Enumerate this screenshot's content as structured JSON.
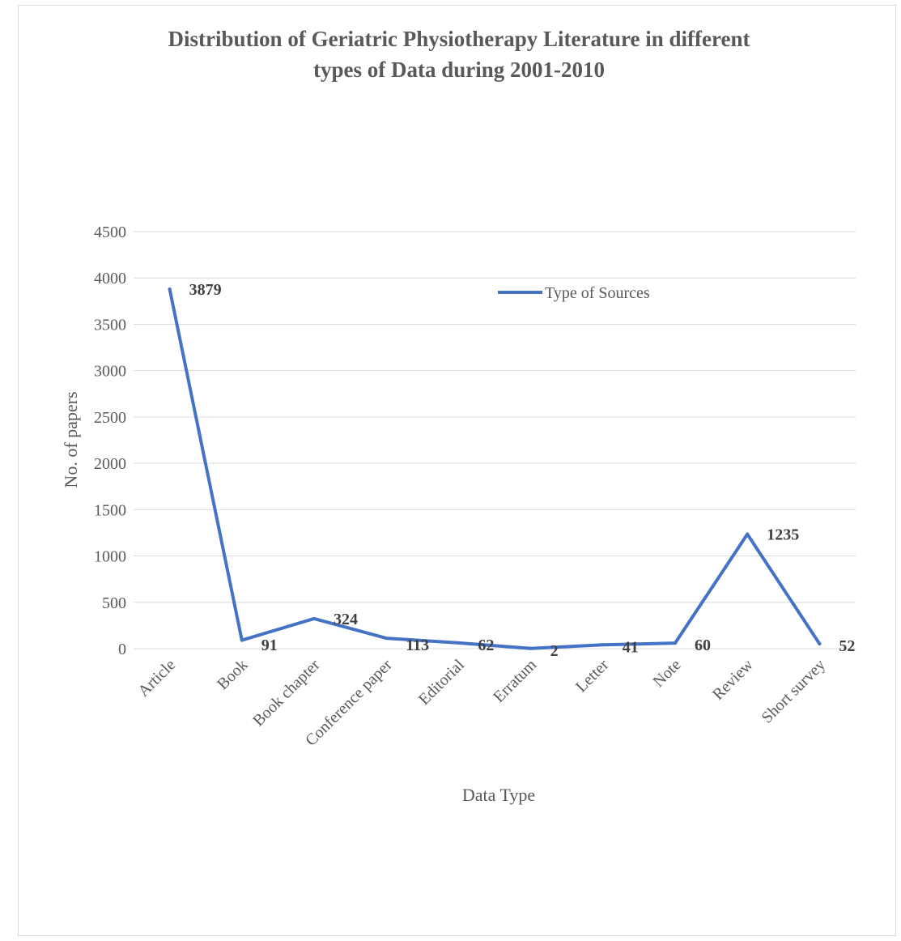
{
  "chart_data": {
    "type": "line",
    "title_lines": [
      "Distribution of Geriatric Physiotherapy Literature in different",
      "types of Data during 2001-2010"
    ],
    "xlabel": "Data Type",
    "ylabel": "No. of papers",
    "ylim": [
      0,
      4500
    ],
    "y_ticks": [
      0,
      500,
      1000,
      1500,
      2000,
      2500,
      3000,
      3500,
      4000,
      4500
    ],
    "grid": true,
    "legend_position": "top-right",
    "categories": [
      "Article",
      "Book",
      "Book chapter",
      "Conference paper",
      "Editorial",
      "Erratum",
      "Letter",
      "Note",
      "Review",
      "Short survey"
    ],
    "series": [
      {
        "name": "Type of Sources",
        "color": "#4472C4",
        "values": [
          3879,
          91,
          324,
          113,
          62,
          2,
          41,
          60,
          1235,
          52
        ]
      }
    ]
  }
}
